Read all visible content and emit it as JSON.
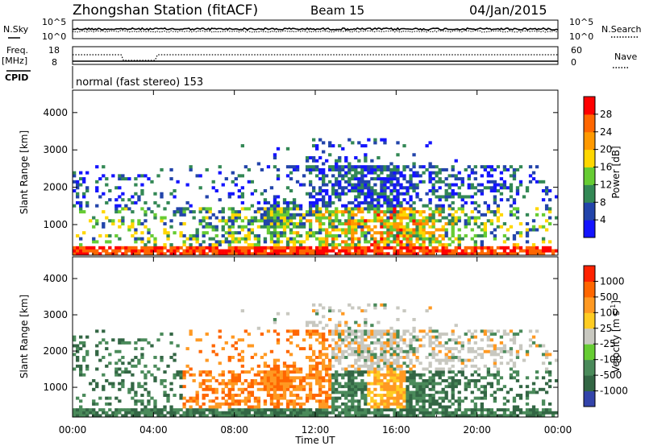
{
  "header": {
    "station": "Zhongshan Station (fitACF)",
    "beam": "Beam 15",
    "date": "04/Jan/2015"
  },
  "strips": {
    "nsky_label": "N.Sky",
    "nsearch_label": "N.Search",
    "noise_tick_top": "10^5",
    "noise_tick_bottom": "10^0",
    "freq_label_line1": "Freq.",
    "freq_label_line2": "[MHz]",
    "freq_tick_top": "18",
    "freq_tick_bottom": "8",
    "nave_label": "Nave",
    "nave_tick_top": "60",
    "nave_tick_bottom": "0",
    "cpid_label": "CPID",
    "cpid_text": "normal (fast stereo) 153"
  },
  "colors": {
    "power": [
      "#1414ff",
      "#2244aa",
      "#338855",
      "#66cc33",
      "#ffd700",
      "#ff9900",
      "#ff6600",
      "#ff0000"
    ],
    "velocity": [
      "#3344aa",
      "#336644",
      "#4a8a5a",
      "#66cc33",
      "#c8c8c0",
      "#ffcc22",
      "#ff9922",
      "#ff6600",
      "#ff2200"
    ]
  },
  "chart_data": [
    {
      "type": "heatmap",
      "title": "",
      "xlabel": "Time UT",
      "ylabel": "Slant Range [km]",
      "xlim": [
        "00:00",
        "24:00"
      ],
      "ylim": [
        180,
        4600
      ],
      "x_ticks": [
        "00:00",
        "04:00",
        "08:00",
        "12:00",
        "16:00",
        "20:00",
        "00:00"
      ],
      "y_ticks": [
        "1000",
        "2000",
        "3000",
        "4000"
      ],
      "colorbar_label": "Power [dB]",
      "colorbar_ticks": [
        "4",
        "8",
        "12",
        "16",
        "20",
        "24",
        "28"
      ],
      "grid": false
    },
    {
      "type": "heatmap",
      "title": "",
      "xlabel": "Time UT",
      "ylabel": "Slant Range [km]",
      "xlim": [
        "00:00",
        "24:00"
      ],
      "ylim": [
        180,
        4600
      ],
      "x_ticks": [
        "00:00",
        "04:00",
        "08:00",
        "12:00",
        "16:00",
        "20:00",
        "00:00"
      ],
      "y_ticks": [
        "1000",
        "2000",
        "3000",
        "4000"
      ],
      "colorbar_label": "Velocity [m s",
      "colorbar_label_sup": "-1",
      "colorbar_label_close": "]",
      "colorbar_ticks": [
        "1000",
        "500",
        "100",
        "25",
        "-25",
        "-100",
        "-500",
        "-1000"
      ],
      "grid": false
    }
  ]
}
